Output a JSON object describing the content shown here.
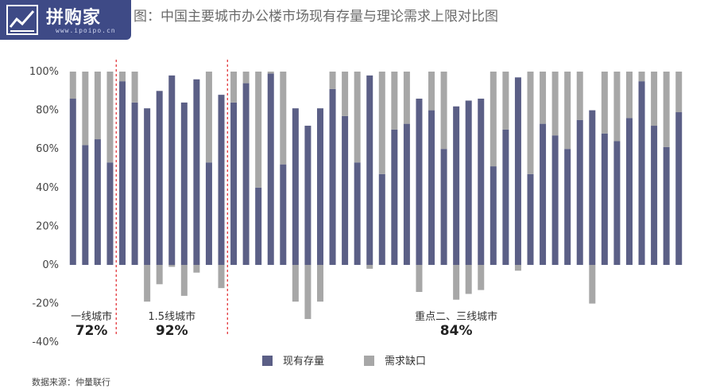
{
  "header": {
    "title": "图：中国主要城市办公楼市场现有存量与理论需求上限对比图",
    "logo_text": "拼购家",
    "logo_url": "www.ipoipo.cn"
  },
  "source_text": "数据来源：仲量联行",
  "colors": {
    "stock": "#5b5f86",
    "gap": "#a7a7a7",
    "divider": "#e0262b",
    "logo_bg": "#3e4a86"
  },
  "chart_data": {
    "type": "bar",
    "stacked": false,
    "ylim": [
      -40,
      100
    ],
    "yticks": [
      "100%",
      "80%",
      "60%",
      "40%",
      "20%",
      "0%",
      "-20%",
      "-40%"
    ],
    "ytick_values": [
      100,
      80,
      60,
      40,
      20,
      0,
      -20,
      -40
    ],
    "grid": false,
    "legend_position": "bottom",
    "series": [
      {
        "name": "现有存量",
        "values": [
          86,
          62,
          65,
          53,
          95,
          84,
          81,
          90,
          98,
          84,
          96,
          53,
          88,
          84,
          94,
          40,
          99,
          52,
          81,
          72,
          81,
          91,
          77,
          53,
          98,
          47,
          70,
          73,
          86,
          80,
          60,
          82,
          85,
          86,
          51,
          70,
          97,
          47,
          73,
          67,
          60,
          75,
          80,
          68,
          64,
          76,
          95,
          72,
          61,
          79
        ]
      },
      {
        "name": "需求缺口",
        "values": [
          14,
          38,
          35,
          47,
          5,
          16,
          -19,
          -10,
          -1,
          -16,
          -4,
          47,
          -12,
          16,
          6,
          60,
          1,
          48,
          -19,
          -28,
          -19,
          9,
          23,
          47,
          -2,
          53,
          30,
          27,
          -14,
          20,
          40,
          -18,
          -15,
          -13,
          49,
          30,
          -3,
          53,
          27,
          33,
          40,
          25,
          -20,
          32,
          36,
          24,
          5,
          28,
          39,
          21
        ]
      }
    ],
    "groups": [
      {
        "label": "一线城市",
        "pct": "72%",
        "count": 4
      },
      {
        "label": "1.5线城市",
        "pct": "92%",
        "count": 9
      },
      {
        "label": "重点二、三线城市",
        "pct": "84%",
        "count": 37
      }
    ]
  }
}
